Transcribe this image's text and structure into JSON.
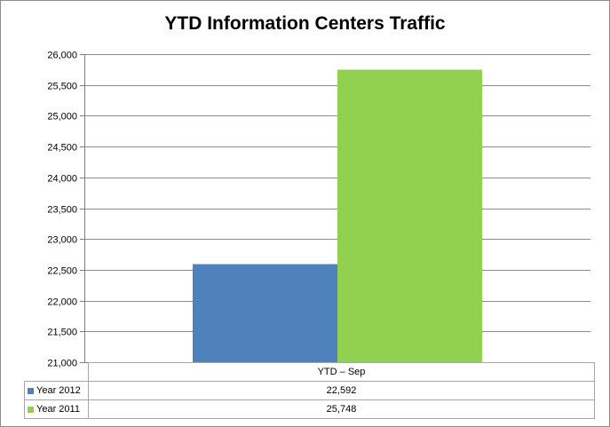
{
  "chart_data": {
    "type": "bar",
    "title": "YTD Information Centers Traffic",
    "categories": [
      "YTD – Sep"
    ],
    "series": [
      {
        "name": "Year 2012",
        "values": [
          22592
        ],
        "value_labels": [
          "22,592"
        ],
        "color": "#4f81bd"
      },
      {
        "name": "Year 2011",
        "values": [
          25748
        ],
        "value_labels": [
          "25,748"
        ],
        "color": "#92d050"
      }
    ],
    "ylim": [
      21000,
      26000
    ],
    "yticks": [
      21000,
      21500,
      22000,
      22500,
      23000,
      23500,
      24000,
      24500,
      25000,
      25500,
      26000
    ],
    "ytick_labels": [
      "21,000",
      "21,500",
      "22,000",
      "22,500",
      "23,000",
      "23,500",
      "24,000",
      "24,500",
      "25,000",
      "25,500",
      "26,000"
    ],
    "grid": true,
    "legend": "data-table"
  }
}
